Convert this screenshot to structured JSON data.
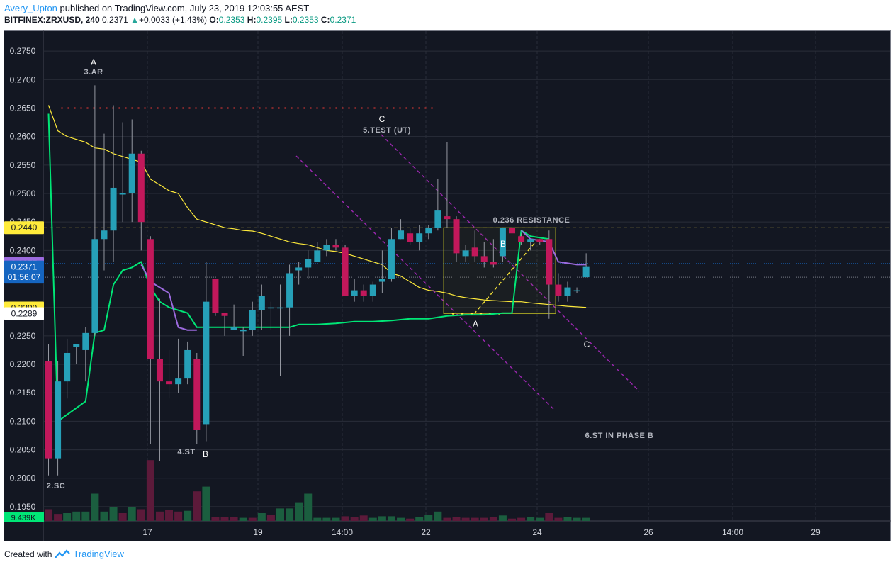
{
  "header": {
    "author": "Avery_Upton",
    "published_text": "published on TradingView.com, July 23, 2019 12:03:55 AEST",
    "symbol": "BITFINEX:ZRXUSD, 240",
    "last": "0.2371",
    "change_arrow": "▲",
    "change": "+0.0033 (+1.43%)",
    "o_label": "O:",
    "o": "0.2353",
    "h_label": "H:",
    "h": "0.2395",
    "l_label": "L:",
    "l": "0.2353",
    "c_label": "C:",
    "c": "0.2371"
  },
  "footer": {
    "created_with": "Created with",
    "brand": "TradingView",
    "logo_icon": "tradingview-logo-icon"
  },
  "colors": {
    "background": "#131722",
    "grid": "#2a2e39",
    "up": "#26a0b8",
    "down": "#c2185b",
    "vol_up": "#1b5e3f",
    "vol_down": "#5c1a3a",
    "sma_long": "#00e676",
    "sma_short": "#ffeb3b",
    "hma": "#9c6ade",
    "channel": "#9c27b0",
    "resistance": "#8a7a3a",
    "box": "#9e9d24",
    "dotted_red": "#e53935",
    "annotation": "#b2b5be"
  },
  "chart_data": {
    "type": "candlestick",
    "y_range": [
      0.1925,
      0.2785
    ],
    "y_ticks": [
      "0.2750",
      "0.2700",
      "0.2650",
      "0.2600",
      "0.2550",
      "0.2500",
      "0.2450",
      "0.2400",
      "0.2350",
      "0.2300",
      "0.2250",
      "0.2200",
      "0.2150",
      "0.2100",
      "0.2050",
      "0.2000",
      "0.1950"
    ],
    "x_ticks": [
      "17",
      "19",
      "14:00",
      "22",
      "24",
      "26",
      "14:00",
      "29"
    ],
    "candles": [
      [
        0.2205,
        0.2235,
        0.2005,
        0.2035
      ],
      [
        0.2035,
        0.2205,
        0.2005,
        0.217
      ],
      [
        0.217,
        0.2245,
        0.214,
        0.222
      ],
      [
        0.223,
        0.2235,
        0.22,
        0.2235
      ],
      [
        0.2225,
        0.2265,
        0.217,
        0.2255
      ],
      [
        0.2255,
        0.269,
        0.225,
        0.242
      ],
      [
        0.242,
        0.2605,
        0.2365,
        0.2435
      ],
      [
        0.2435,
        0.2655,
        0.238,
        0.251
      ],
      [
        0.25,
        0.2625,
        0.245,
        0.25
      ],
      [
        0.25,
        0.263,
        0.245,
        0.257
      ],
      [
        0.257,
        0.2575,
        0.24,
        0.245
      ],
      [
        0.242,
        0.2425,
        0.206,
        0.221
      ],
      [
        0.221,
        0.2315,
        0.203,
        0.217
      ],
      [
        0.217,
        0.2225,
        0.214,
        0.2165
      ],
      [
        0.2165,
        0.2245,
        0.215,
        0.2175
      ],
      [
        0.2175,
        0.224,
        0.2165,
        0.2225
      ],
      [
        0.221,
        0.222,
        0.206,
        0.2085
      ],
      [
        0.2095,
        0.238,
        0.2065,
        0.231
      ],
      [
        0.235,
        0.235,
        0.2285,
        0.229
      ],
      [
        0.229,
        0.229,
        0.225,
        0.2285
      ],
      [
        0.226,
        0.2305,
        0.226,
        0.2265
      ],
      [
        0.226,
        0.2265,
        0.2215,
        0.226
      ],
      [
        0.226,
        0.231,
        0.225,
        0.2295
      ],
      [
        0.2295,
        0.234,
        0.226,
        0.232
      ],
      [
        0.23,
        0.231,
        0.226,
        0.23
      ],
      [
        0.23,
        0.234,
        0.218,
        0.23
      ],
      [
        0.23,
        0.2375,
        0.225,
        0.236
      ],
      [
        0.2365,
        0.238,
        0.234,
        0.237
      ],
      [
        0.237,
        0.24,
        0.235,
        0.2385
      ],
      [
        0.238,
        0.2415,
        0.238,
        0.24
      ],
      [
        0.24,
        0.242,
        0.239,
        0.241
      ],
      [
        0.241,
        0.242,
        0.24,
        0.2405
      ],
      [
        0.2405,
        0.241,
        0.232,
        0.232
      ],
      [
        0.232,
        0.235,
        0.231,
        0.233
      ],
      [
        0.233,
        0.234,
        0.231,
        0.232
      ],
      [
        0.232,
        0.2345,
        0.231,
        0.234
      ],
      [
        0.2345,
        0.24,
        0.2325,
        0.235
      ],
      [
        0.235,
        0.244,
        0.2345,
        0.242
      ],
      [
        0.242,
        0.2455,
        0.242,
        0.2435
      ],
      [
        0.243,
        0.244,
        0.241,
        0.2415
      ],
      [
        0.2415,
        0.2445,
        0.24,
        0.243
      ],
      [
        0.243,
        0.2445,
        0.242,
        0.244
      ],
      [
        0.244,
        0.2525,
        0.2435,
        0.247
      ],
      [
        0.246,
        0.259,
        0.244,
        0.2455
      ],
      [
        0.2455,
        0.246,
        0.238,
        0.2395
      ],
      [
        0.239,
        0.241,
        0.238,
        0.24
      ],
      [
        0.2405,
        0.2435,
        0.238,
        0.239
      ],
      [
        0.239,
        0.2415,
        0.237,
        0.238
      ],
      [
        0.238,
        0.242,
        0.237,
        0.2375
      ],
      [
        0.239,
        0.244,
        0.238,
        0.244
      ],
      [
        0.244,
        0.2445,
        0.24,
        0.243
      ],
      [
        0.2425,
        0.243,
        0.241,
        0.2415
      ],
      [
        0.2415,
        0.242,
        0.24,
        0.242
      ],
      [
        0.242,
        0.242,
        0.241,
        0.2415
      ],
      [
        0.242,
        0.2435,
        0.228,
        0.234
      ],
      [
        0.234,
        0.236,
        0.231,
        0.232
      ],
      [
        0.232,
        0.2345,
        0.231,
        0.2335
      ],
      [
        0.233,
        0.2335,
        0.2325,
        0.233
      ],
      [
        0.2353,
        0.2395,
        0.2353,
        0.2371
      ]
    ],
    "volume_up": [
      false,
      false,
      true,
      true,
      true,
      true,
      true,
      true,
      false,
      true,
      false,
      false,
      false,
      false,
      false,
      true,
      false,
      true,
      false,
      false,
      false,
      true,
      false,
      true,
      false,
      true,
      true,
      true,
      true,
      true,
      true,
      true,
      false,
      false,
      false,
      true,
      true,
      true,
      true,
      false,
      true,
      true,
      true,
      false,
      false,
      false,
      false,
      false,
      false,
      true,
      false,
      false,
      true,
      true,
      false,
      false,
      true,
      true,
      true
    ],
    "volume": [
      0.15,
      0.09,
      0.1,
      0.12,
      0.12,
      0.35,
      0.12,
      0.18,
      0.1,
      0.18,
      0.15,
      0.78,
      0.12,
      0.14,
      0.12,
      0.13,
      0.38,
      0.44,
      0.05,
      0.05,
      0.05,
      0.04,
      0.04,
      0.1,
      0.08,
      0.16,
      0.16,
      0.24,
      0.35,
      0.04,
      0.04,
      0.04,
      0.06,
      0.05,
      0.07,
      0.04,
      0.06,
      0.06,
      0.04,
      0.03,
      0.05,
      0.08,
      0.12,
      0.04,
      0.05,
      0.04,
      0.04,
      0.04,
      0.05,
      0.07,
      0.03,
      0.04,
      0.05,
      0.04,
      0.1,
      0.04,
      0.05,
      0.04,
      0.04
    ],
    "sma_long": [
      [
        0,
        0.264
      ],
      [
        1,
        0.21
      ],
      [
        4,
        0.2135
      ],
      [
        5,
        0.2255
      ],
      [
        6,
        0.226
      ],
      [
        7,
        0.234
      ],
      [
        8,
        0.2365
      ],
      [
        9,
        0.237
      ],
      [
        10,
        0.238
      ],
      [
        11,
        0.2335
      ],
      [
        12,
        0.231
      ],
      [
        13,
        0.23
      ],
      [
        14,
        0.2295
      ],
      [
        15,
        0.229
      ],
      [
        16,
        0.2265
      ],
      [
        17,
        0.2265
      ],
      [
        19,
        0.2265
      ],
      [
        22,
        0.2265
      ],
      [
        25,
        0.2265
      ],
      [
        26,
        0.2265
      ],
      [
        27,
        0.227
      ],
      [
        29,
        0.227
      ],
      [
        31,
        0.2272
      ],
      [
        33,
        0.2275
      ],
      [
        35,
        0.2275
      ],
      [
        37,
        0.2277
      ],
      [
        39,
        0.228
      ],
      [
        41,
        0.228
      ],
      [
        43,
        0.2285
      ],
      [
        45,
        0.2287
      ],
      [
        47,
        0.2287
      ],
      [
        49,
        0.229
      ],
      [
        50,
        0.229
      ],
      [
        51,
        0.2435
      ],
      [
        52,
        0.2425
      ],
      [
        54,
        0.242
      ]
    ],
    "sma_short": [
      [
        0,
        0.2655
      ],
      [
        1,
        0.261
      ],
      [
        2,
        0.26
      ],
      [
        3,
        0.2595
      ],
      [
        4,
        0.259
      ],
      [
        5,
        0.258
      ],
      [
        6,
        0.2578
      ],
      [
        7,
        0.257
      ],
      [
        8,
        0.2565
      ],
      [
        9,
        0.256
      ],
      [
        10,
        0.2555
      ],
      [
        11,
        0.2525
      ],
      [
        12,
        0.2515
      ],
      [
        13,
        0.2505
      ],
      [
        14,
        0.25
      ],
      [
        15,
        0.2475
      ],
      [
        16,
        0.2455
      ],
      [
        17,
        0.245
      ],
      [
        18,
        0.2445
      ],
      [
        19,
        0.244
      ],
      [
        20,
        0.2438
      ],
      [
        21,
        0.2435
      ],
      [
        22,
        0.2434
      ],
      [
        23,
        0.243
      ],
      [
        24,
        0.2425
      ],
      [
        25,
        0.242
      ],
      [
        26,
        0.2415
      ],
      [
        27,
        0.2412
      ],
      [
        28,
        0.241
      ],
      [
        29,
        0.2405
      ],
      [
        30,
        0.24
      ],
      [
        31,
        0.2398
      ],
      [
        32,
        0.2395
      ],
      [
        33,
        0.239
      ],
      [
        34,
        0.2385
      ],
      [
        35,
        0.238
      ],
      [
        36,
        0.2375
      ],
      [
        37,
        0.236
      ],
      [
        38,
        0.2355
      ],
      [
        39,
        0.2345
      ],
      [
        40,
        0.2335
      ],
      [
        41,
        0.233
      ],
      [
        42,
        0.2328
      ],
      [
        43,
        0.2325
      ],
      [
        44,
        0.232
      ],
      [
        45,
        0.2317
      ],
      [
        46,
        0.2315
      ],
      [
        47,
        0.2313
      ],
      [
        48,
        0.2312
      ],
      [
        49,
        0.2311
      ],
      [
        50,
        0.231
      ],
      [
        51,
        0.231
      ],
      [
        52,
        0.2308
      ],
      [
        54,
        0.2305
      ],
      [
        56,
        0.2302
      ],
      [
        58,
        0.23
      ]
    ],
    "hma": [
      [
        10,
        0.2375
      ],
      [
        11,
        0.2345
      ],
      [
        13,
        0.2325
      ],
      [
        14,
        0.2265
      ],
      [
        15,
        0.226
      ],
      [
        16,
        0.226
      ],
      [
        51,
        0.2435
      ],
      [
        52,
        0.242
      ],
      [
        54,
        0.2415
      ],
      [
        55,
        0.238
      ],
      [
        57,
        0.2375
      ],
      [
        58,
        0.2375
      ]
    ],
    "channel_upper": [
      [
        0.5,
        0.26
      ],
      [
        1.3,
        0.232
      ]
    ],
    "price_labels": [
      {
        "text": "0.2440",
        "value": 0.244,
        "bg": "#ffeb3b",
        "fg": "#131722"
      },
      {
        "text": "0.2377",
        "value": 0.2377,
        "bg": "#9c6ade",
        "fg": "#ffffff"
      },
      {
        "text": "0.2371",
        "value": 0.2371,
        "bg": "#1565c0",
        "fg": "#ffffff"
      },
      {
        "text": "01:56:07",
        "value": 0.2353,
        "bg": "#1565c0",
        "fg": "#ffffff"
      },
      {
        "text": "0.2299",
        "value": 0.2299,
        "bg": "#ffeb3b",
        "fg": "#131722"
      },
      {
        "text": "0.2289",
        "value": 0.2289,
        "bg": "#ffffff",
        "fg": "#131722"
      }
    ],
    "volume_label": "9.439K",
    "annotations": [
      {
        "text": "A",
        "bold": false
      },
      {
        "text": "3.AR",
        "bold": true
      },
      {
        "text": "C",
        "bold": false
      },
      {
        "text": "5.TEST (UT)",
        "bold": true
      },
      {
        "text": "0.236 RESISTANCE",
        "bold": true
      },
      {
        "text": "B",
        "bold": false
      },
      {
        "text": "A",
        "bold": false
      },
      {
        "text": "C",
        "bold": false
      },
      {
        "text": "6.ST IN PHASE B",
        "bold": true
      },
      {
        "text": "4.ST",
        "bold": true
      },
      {
        "text": "B",
        "bold": false
      },
      {
        "text": "2.SC",
        "bold": true
      }
    ]
  }
}
